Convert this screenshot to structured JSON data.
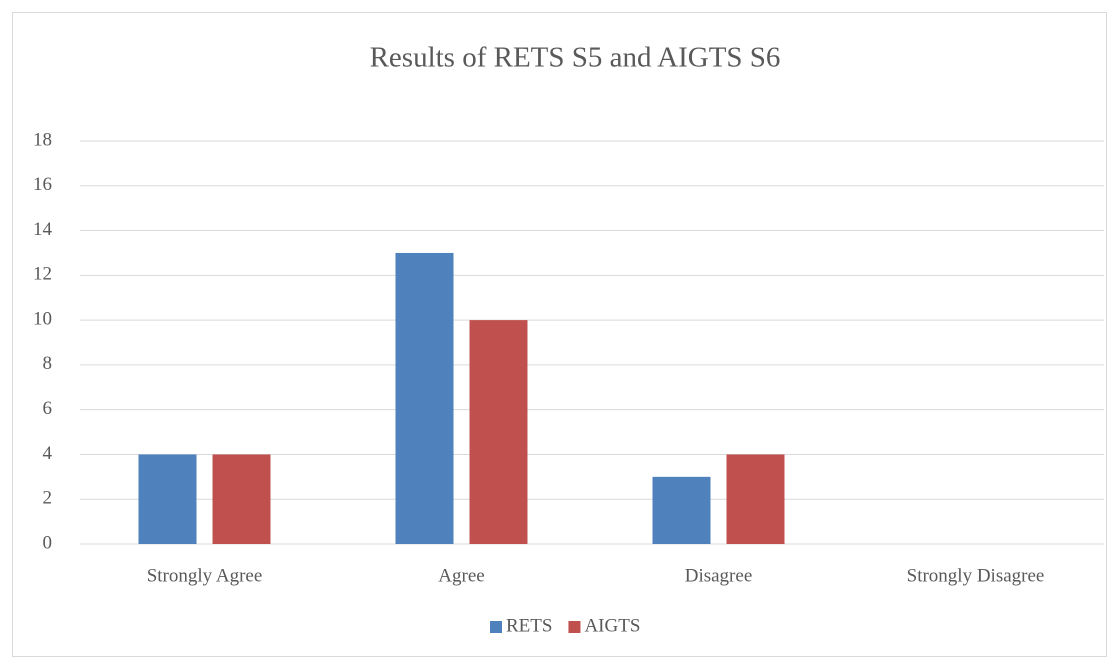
{
  "chart_data": {
    "type": "bar",
    "title": "Results of RETS S5 and AIGTS S6",
    "categories": [
      "Strongly Agree",
      "Agree",
      "Disagree",
      "Strongly Disagree"
    ],
    "series": [
      {
        "name": "RETS",
        "color": "#4f81bd",
        "values": [
          4,
          13,
          3,
          0
        ]
      },
      {
        "name": "AIGTS",
        "color": "#c0504d",
        "values": [
          4,
          10,
          4,
          0
        ]
      }
    ],
    "ylim": [
      0,
      18
    ],
    "yticks": [
      0,
      2,
      4,
      6,
      8,
      10,
      12,
      14,
      16,
      18
    ],
    "grid": true,
    "legend": "bottom"
  }
}
